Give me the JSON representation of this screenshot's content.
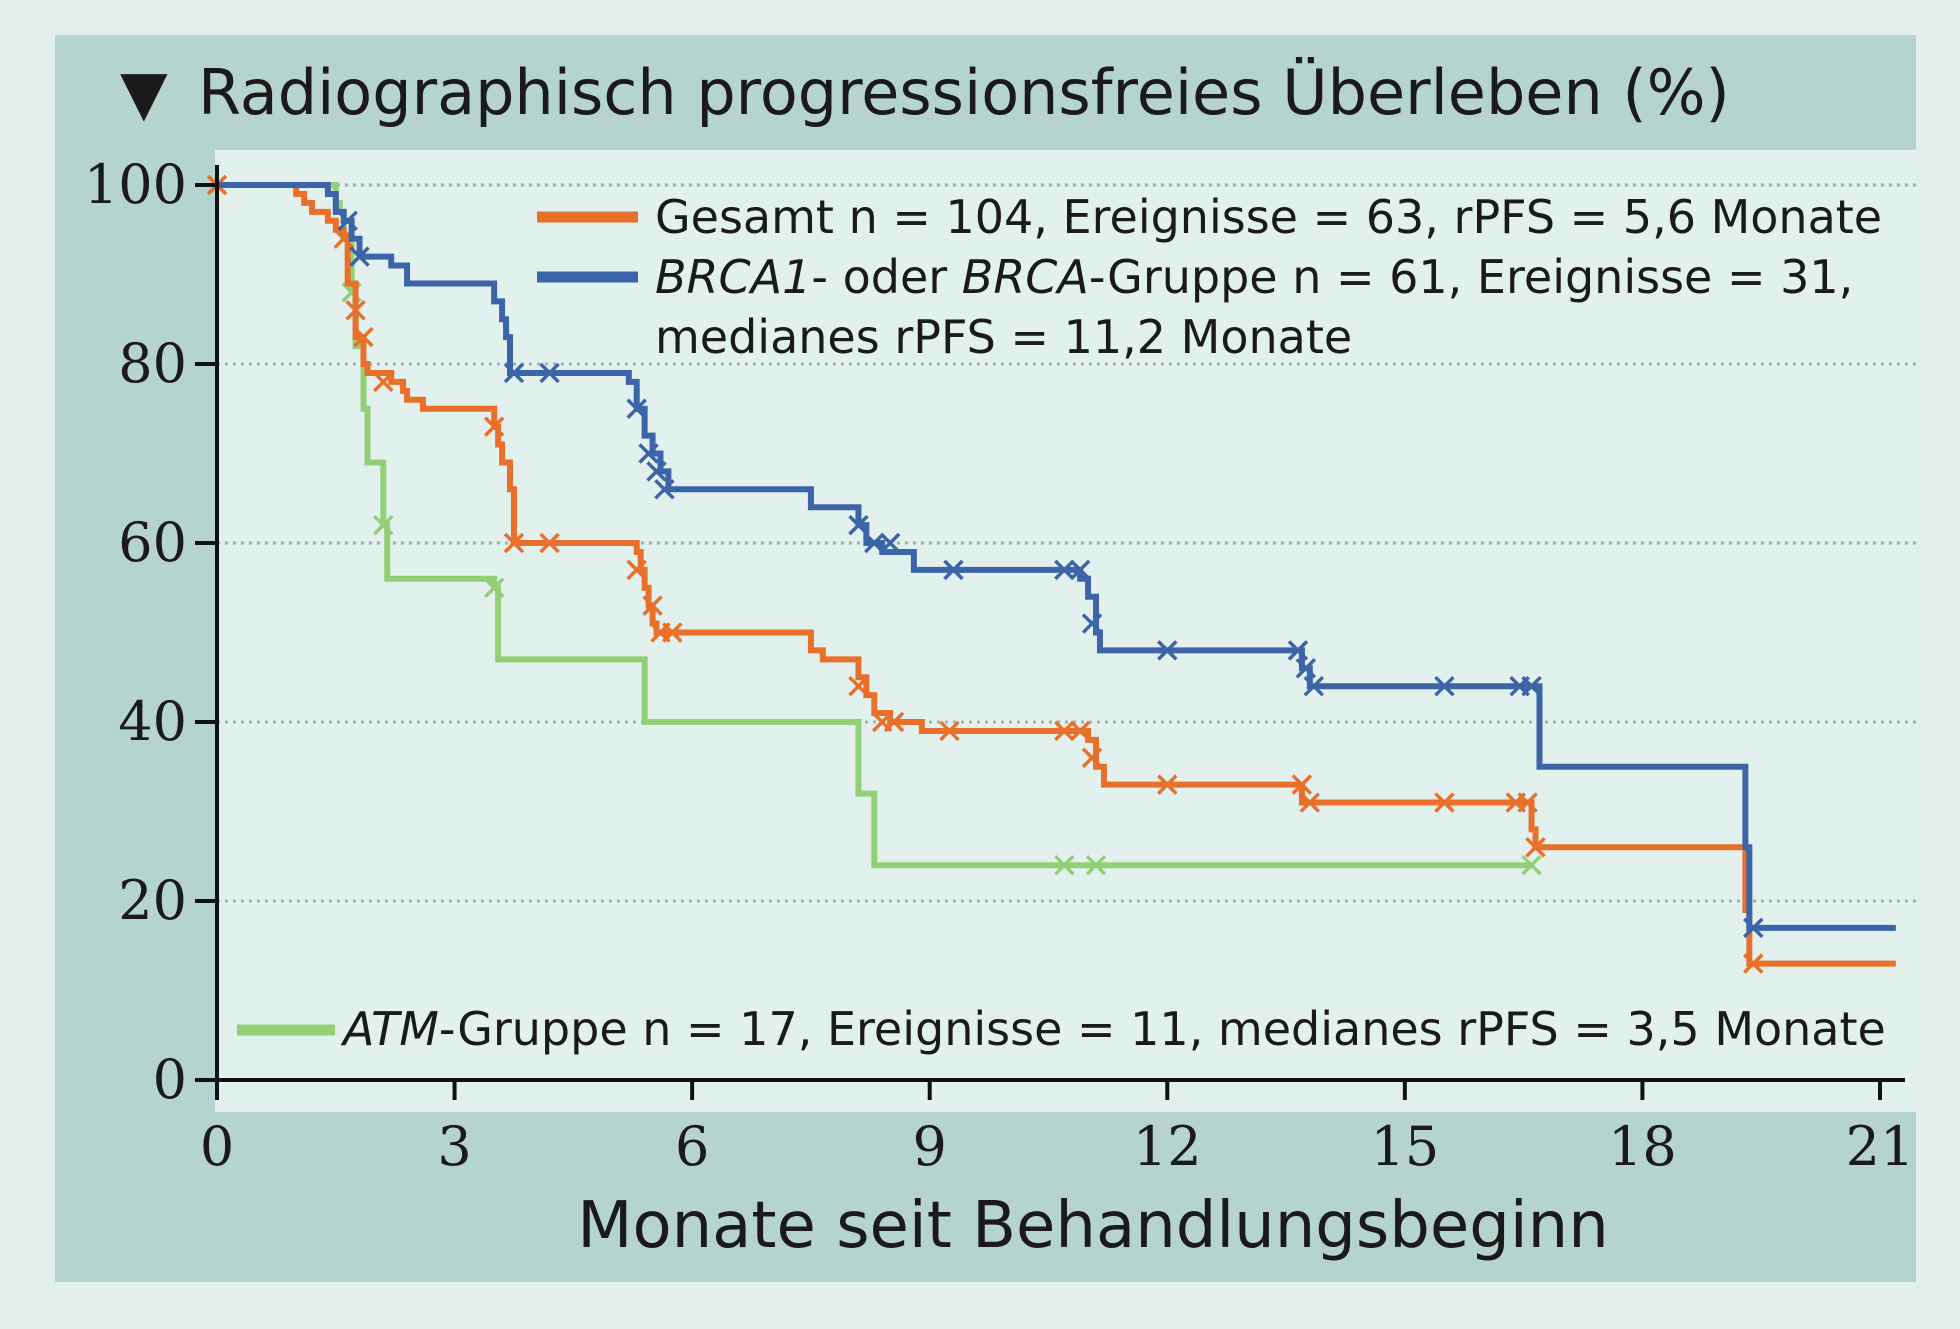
{
  "chart_data": {
    "type": "line",
    "title": "Radiographisch progressionsfreies Überleben (%)",
    "title_marker": "▼",
    "xlabel": "Monate seit Behandlungsbeginn",
    "ylabel": "",
    "xlim": [
      0,
      21.3
    ],
    "ylim": [
      0,
      100
    ],
    "x_ticks": [
      0,
      3,
      6,
      9,
      12,
      15,
      18,
      21
    ],
    "y_ticks": [
      0,
      20,
      40,
      60,
      80,
      100
    ],
    "grid": "horizontal dotted",
    "step": true,
    "colors": {
      "gesamt": "#e8702a",
      "brca": "#3c64a8",
      "atm": "#93cf76",
      "plot_bg": "#e3f1ee",
      "frame_bg": "#b5d3cf",
      "page_bg": "#e3efec"
    },
    "legend_upper": {
      "gesamt_line": "Gesamt n = 104, Ereignisse = 63, rPFS = 5,6 Monate",
      "brca_part1": "BRCA1",
      "brca_part2": "- oder ",
      "brca_part3": "BRCA",
      "brca_part4": "-Gruppe n = 61, Ereignisse = 31,",
      "brca_line2": "medianes rPFS = 11,2 Monate"
    },
    "legend_lower": {
      "atm_part1": "ATM",
      "atm_part2": "-Gruppe n = 17, Ereignisse = 11, medianes rPFS = 3,5 Monate"
    },
    "series": [
      {
        "key": "gesamt",
        "x": [
          0,
          1.0,
          1.1,
          1.2,
          1.4,
          1.5,
          1.6,
          1.65,
          1.75,
          1.85,
          1.9,
          2.2,
          2.35,
          2.4,
          2.6,
          3.5,
          3.55,
          3.6,
          3.7,
          3.75,
          5.3,
          5.35,
          5.4,
          5.45,
          5.5,
          5.55,
          7.5,
          7.65,
          8.1,
          8.2,
          8.3,
          8.5,
          8.9,
          11.0,
          11.1,
          11.2,
          13.7,
          13.8,
          16.6,
          16.65,
          19.3,
          19.35,
          21.2
        ],
        "y": [
          100,
          99,
          98,
          97,
          96,
          95,
          94,
          89,
          83,
          80,
          79,
          78,
          77,
          76,
          75,
          73,
          71,
          69,
          66,
          60,
          59,
          57,
          55,
          53,
          51,
          50,
          48,
          47,
          45,
          43,
          41,
          40,
          39,
          38,
          35,
          33,
          31,
          31,
          28,
          26,
          19,
          13,
          13
        ],
        "censored_x": [
          0,
          1.6,
          1.75,
          1.85,
          2.1,
          3.5,
          3.75,
          4.2,
          5.3,
          5.5,
          5.6,
          5.75,
          8.1,
          8.4,
          8.55,
          9.25,
          10.7,
          10.9,
          11.05,
          12.0,
          13.7,
          13.8,
          15.5,
          16.4,
          16.55,
          16.65,
          19.4
        ],
        "censored_y": [
          100,
          94,
          86,
          83,
          78,
          73,
          60,
          60,
          57,
          53,
          50,
          50,
          44,
          40,
          40,
          39,
          39,
          39,
          36,
          33,
          33,
          31,
          31,
          31,
          31,
          26,
          13
        ]
      },
      {
        "key": "brca",
        "x": [
          0,
          1.4,
          1.5,
          1.6,
          1.7,
          1.8,
          2.2,
          2.4,
          3.5,
          3.6,
          3.65,
          3.7,
          5.2,
          5.3,
          5.4,
          5.5,
          5.6,
          5.7,
          7.5,
          8.1,
          8.2,
          8.4,
          8.8,
          10.9,
          11.0,
          11.1,
          11.15,
          13.7,
          13.8,
          16.7,
          19.3,
          19.35,
          21.2
        ],
        "y": [
          100,
          99,
          97,
          96,
          94,
          92,
          91,
          89,
          87,
          85,
          83,
          79,
          78,
          75,
          72,
          70,
          68,
          66,
          64,
          62,
          60,
          59,
          57,
          56,
          54,
          50,
          48,
          46,
          44,
          35,
          26,
          17,
          17
        ],
        "censored_x": [
          1.65,
          1.8,
          3.75,
          4.2,
          5.3,
          5.45,
          5.55,
          5.65,
          8.1,
          8.3,
          8.5,
          9.3,
          10.7,
          10.9,
          11.05,
          12.0,
          13.65,
          13.75,
          13.85,
          15.5,
          16.45,
          16.6,
          19.4
        ],
        "censored_y": [
          96,
          92,
          79,
          79,
          75,
          70,
          68,
          66,
          62,
          60,
          60,
          57,
          57,
          57,
          51,
          48,
          48,
          46,
          44,
          44,
          44,
          44,
          17
        ]
      },
      {
        "key": "atm",
        "x": [
          0,
          1.5,
          1.55,
          1.6,
          1.7,
          1.75,
          1.85,
          1.9,
          2.1,
          2.15,
          3.5,
          3.55,
          5.4,
          8.1,
          8.3,
          16.6
        ],
        "y": [
          100,
          98,
          97,
          94,
          88,
          82,
          75,
          69,
          62,
          56,
          55,
          47,
          40,
          32,
          24,
          24
        ],
        "censored_x": [
          0,
          1.7,
          2.1,
          3.5,
          10.7,
          11.1,
          16.6
        ],
        "censored_y": [
          100,
          88,
          62,
          55,
          24,
          24,
          24
        ]
      }
    ]
  }
}
